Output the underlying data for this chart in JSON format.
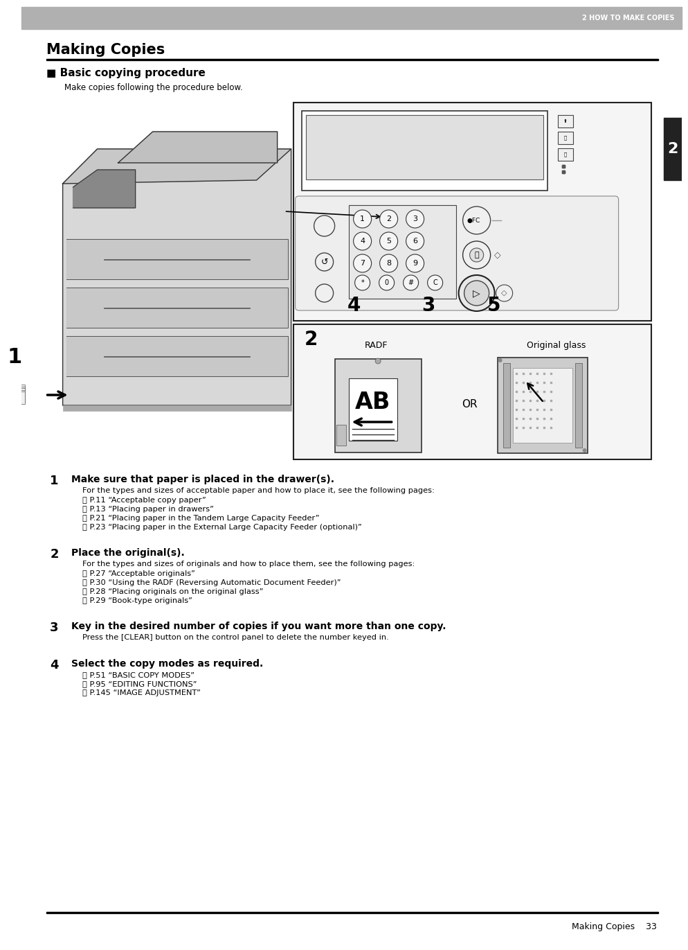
{
  "page_bg": "#ffffff",
  "header_bg": "#b0b0b0",
  "header_text": "2 HOW TO MAKE COPIES",
  "header_text_color": "#ffffff",
  "sidebar_bg": "#222222",
  "sidebar_text": "2",
  "sidebar_text_color": "#ffffff",
  "title": "Making Copies",
  "section_title": "■ Basic copying procedure",
  "section_subtitle": "Make copies following the procedure below.",
  "steps": [
    {
      "num": "1",
      "heading": "Make sure that paper is placed in the drawer(s).",
      "body": "For the types and sizes of acceptable paper and how to place it, see the following pages:",
      "refs": [
        "⌗ P.11 “Acceptable copy paper”",
        "⌗ P.13 “Placing paper in drawers”",
        "⌗ P.21 “Placing paper in the Tandem Large Capacity Feeder”",
        "⌗ P.23 “Placing paper in the External Large Capacity Feeder (optional)”"
      ]
    },
    {
      "num": "2",
      "heading": "Place the original(s).",
      "body": "For the types and sizes of originals and how to place them, see the following pages:",
      "refs": [
        "⌗ P.27 “Acceptable originals”",
        "⌗ P.30 “Using the RADF (Reversing Automatic Document Feeder)”",
        "⌗ P.28 “Placing originals on the original glass”",
        "⌗ P.29 “Book-type originals”"
      ]
    },
    {
      "num": "3",
      "heading": "Key in the desired number of copies if you want more than one copy.",
      "body": "Press the [CLEAR] button on the control panel to delete the number keyed in.",
      "refs": []
    },
    {
      "num": "4",
      "heading": "Select the copy modes as required.",
      "body": "",
      "refs": [
        "⌗ P.51 “BASIC COPY MODES”",
        "⌗ P.95 “EDITING FUNCTIONS”",
        "⌗ P.145 “IMAGE ADJUSTMENT”"
      ]
    }
  ],
  "footer_right": "Making Copies    33",
  "diagram_labels": {
    "radf": "RADF",
    "original_glass": "Original glass",
    "or": "OR",
    "num2": "2",
    "num4": "4",
    "num3": "3",
    "num5": "5",
    "num1": "1"
  }
}
